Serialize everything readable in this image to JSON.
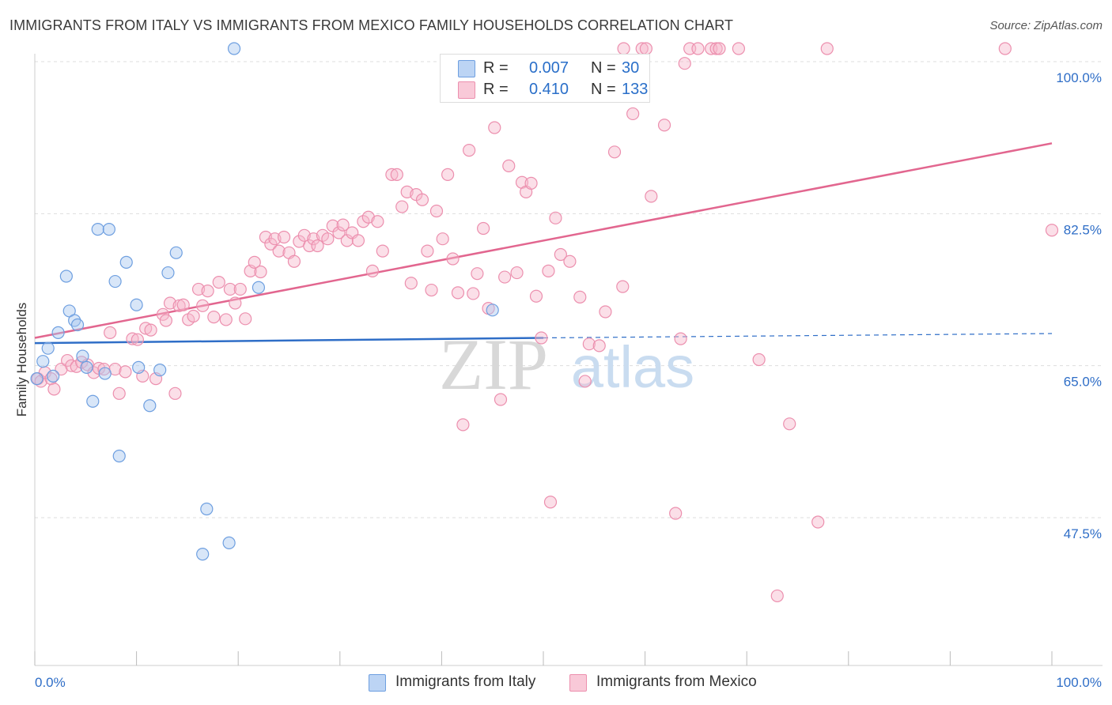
{
  "title": "IMMIGRANTS FROM ITALY VS IMMIGRANTS FROM MEXICO FAMILY HOUSEHOLDS CORRELATION CHART",
  "source": "Source: ZipAtlas.com",
  "watermark": {
    "zip": "ZIP",
    "atlas": "atlas"
  },
  "legend": {
    "italy": {
      "r_label": "R =",
      "r_value": "0.007",
      "n_label": "N =",
      "n_value": "30"
    },
    "mexico": {
      "r_label": "R =",
      "r_value": "0.410",
      "n_label": "N =",
      "n_value": "133"
    }
  },
  "colors": {
    "italy_fill": "#a9c8f0",
    "italy_stroke": "#6e9fe0",
    "italy_line": "#2f6ec7",
    "mexico_fill": "#f6b8cc",
    "mexico_stroke": "#ec8fae",
    "mexico_line": "#e2668f",
    "tick_label": "#2f6ec7",
    "grid": "#dddddd"
  },
  "chart_data": {
    "type": "scatter",
    "title": "IMMIGRANTS FROM ITALY VS IMMIGRANTS FROM MEXICO FAMILY HOUSEHOLDS CORRELATION CHART",
    "xlabel": "",
    "ylabel": "Family Households",
    "xlim": [
      0,
      100
    ],
    "ylim": [
      30,
      102
    ],
    "x_tick_labels": [
      "0.0%",
      "100.0%"
    ],
    "y_ticks": [
      47.5,
      65.0,
      82.5,
      100.0
    ],
    "y_tick_labels": [
      "47.5%",
      "65.0%",
      "82.5%",
      "100.0%"
    ],
    "legend_position": "top-center",
    "series": [
      {
        "name": "Immigrants from Italy",
        "R": 0.007,
        "N": 30,
        "trend": {
          "x": [
            0,
            50
          ],
          "y": [
            67.6,
            68.2
          ],
          "dashed_extension_to_x": 100,
          "dashed_end_y": 68.7
        },
        "points": [
          [
            0.2,
            63.5
          ],
          [
            0.8,
            65.5
          ],
          [
            1.3,
            67.0
          ],
          [
            1.8,
            63.8
          ],
          [
            2.3,
            68.8
          ],
          [
            3.1,
            75.3
          ],
          [
            3.4,
            71.3
          ],
          [
            3.9,
            70.2
          ],
          [
            4.2,
            69.7
          ],
          [
            4.7,
            66.1
          ],
          [
            5.1,
            64.8
          ],
          [
            5.7,
            60.9
          ],
          [
            6.2,
            80.7
          ],
          [
            7.3,
            80.7
          ],
          [
            6.9,
            64.1
          ],
          [
            7.9,
            74.7
          ],
          [
            8.3,
            54.6
          ],
          [
            9.0,
            76.9
          ],
          [
            10.0,
            72.0
          ],
          [
            10.2,
            64.8
          ],
          [
            11.3,
            60.4
          ],
          [
            12.3,
            64.5
          ],
          [
            13.1,
            75.7
          ],
          [
            13.9,
            78.0
          ],
          [
            16.5,
            43.3
          ],
          [
            16.9,
            48.5
          ],
          [
            19.1,
            44.6
          ],
          [
            19.6,
            101.5
          ],
          [
            22.0,
            74.0
          ],
          [
            45.0,
            71.4
          ]
        ]
      },
      {
        "name": "Immigrants from Mexico",
        "R": 0.41,
        "N": 133,
        "trend": {
          "x": [
            0,
            100
          ],
          "y": [
            68.2,
            90.6
          ]
        },
        "points": [
          [
            0.3,
            63.5
          ],
          [
            0.6,
            63.2
          ],
          [
            1.0,
            64.2
          ],
          [
            1.6,
            63.5
          ],
          [
            1.9,
            62.3
          ],
          [
            2.6,
            64.6
          ],
          [
            3.2,
            65.6
          ],
          [
            3.6,
            65.0
          ],
          [
            4.1,
            64.9
          ],
          [
            4.6,
            65.4
          ],
          [
            5.2,
            65.1
          ],
          [
            5.8,
            64.2
          ],
          [
            6.3,
            64.7
          ],
          [
            6.8,
            64.6
          ],
          [
            7.4,
            68.8
          ],
          [
            7.9,
            64.6
          ],
          [
            8.3,
            61.8
          ],
          [
            8.9,
            64.3
          ],
          [
            9.6,
            68.1
          ],
          [
            10.1,
            68.0
          ],
          [
            10.6,
            63.8
          ],
          [
            10.9,
            69.3
          ],
          [
            11.4,
            69.1
          ],
          [
            11.9,
            63.5
          ],
          [
            12.6,
            70.9
          ],
          [
            12.9,
            70.2
          ],
          [
            13.3,
            72.2
          ],
          [
            13.8,
            61.8
          ],
          [
            14.2,
            71.9
          ],
          [
            14.6,
            72.0
          ],
          [
            15.1,
            70.3
          ],
          [
            15.6,
            70.7
          ],
          [
            16.1,
            73.8
          ],
          [
            16.5,
            71.9
          ],
          [
            17.0,
            73.6
          ],
          [
            17.6,
            70.6
          ],
          [
            18.1,
            74.6
          ],
          [
            18.8,
            70.3
          ],
          [
            19.2,
            73.8
          ],
          [
            19.7,
            72.2
          ],
          [
            20.2,
            73.8
          ],
          [
            20.7,
            70.4
          ],
          [
            21.2,
            75.9
          ],
          [
            21.6,
            76.9
          ],
          [
            22.2,
            75.8
          ],
          [
            22.7,
            79.8
          ],
          [
            23.2,
            79.0
          ],
          [
            23.6,
            79.6
          ],
          [
            24.0,
            78.2
          ],
          [
            24.5,
            79.8
          ],
          [
            25.0,
            78.0
          ],
          [
            25.5,
            77.0
          ],
          [
            26.0,
            79.3
          ],
          [
            26.5,
            80.0
          ],
          [
            27.0,
            78.8
          ],
          [
            27.4,
            79.6
          ],
          [
            27.8,
            78.8
          ],
          [
            28.3,
            80.0
          ],
          [
            28.8,
            79.6
          ],
          [
            29.3,
            81.1
          ],
          [
            29.9,
            80.3
          ],
          [
            30.3,
            81.2
          ],
          [
            30.7,
            79.4
          ],
          [
            31.2,
            80.3
          ],
          [
            31.8,
            79.4
          ],
          [
            32.3,
            81.6
          ],
          [
            32.8,
            82.1
          ],
          [
            33.2,
            75.9
          ],
          [
            33.7,
            81.6
          ],
          [
            34.2,
            78.2
          ],
          [
            35.1,
            87.0
          ],
          [
            35.6,
            87.0
          ],
          [
            36.1,
            83.3
          ],
          [
            36.6,
            85.0
          ],
          [
            37.0,
            74.5
          ],
          [
            37.5,
            84.7
          ],
          [
            38.1,
            84.1
          ],
          [
            38.6,
            78.2
          ],
          [
            39.0,
            73.7
          ],
          [
            39.5,
            82.8
          ],
          [
            40.1,
            79.6
          ],
          [
            40.6,
            87.0
          ],
          [
            41.1,
            77.3
          ],
          [
            41.6,
            73.4
          ],
          [
            42.1,
            58.2
          ],
          [
            42.7,
            89.8
          ],
          [
            43.1,
            73.3
          ],
          [
            43.5,
            75.6
          ],
          [
            44.1,
            80.8
          ],
          [
            44.6,
            71.6
          ],
          [
            45.2,
            92.4
          ],
          [
            45.8,
            61.1
          ],
          [
            46.0,
            96.0
          ],
          [
            46.2,
            75.2
          ],
          [
            46.6,
            88.0
          ],
          [
            47.4,
            75.7
          ],
          [
            47.9,
            86.1
          ],
          [
            48.3,
            85.0
          ],
          [
            48.8,
            86.0
          ],
          [
            49.3,
            73.0
          ],
          [
            49.8,
            68.2
          ],
          [
            50.5,
            75.9
          ],
          [
            50.7,
            49.3
          ],
          [
            51.2,
            82.0
          ],
          [
            51.7,
            77.8
          ],
          [
            52.6,
            77.0
          ],
          [
            53.6,
            72.9
          ],
          [
            54.1,
            63.2
          ],
          [
            54.5,
            67.5
          ],
          [
            55.5,
            67.3
          ],
          [
            56.1,
            71.2
          ],
          [
            57.0,
            89.6
          ],
          [
            57.8,
            74.1
          ],
          [
            57.9,
            101.5
          ],
          [
            58.8,
            94.0
          ],
          [
            59.7,
            101.5
          ],
          [
            60.1,
            101.5
          ],
          [
            60.6,
            84.5
          ],
          [
            61.9,
            92.7
          ],
          [
            63.0,
            48.0
          ],
          [
            63.5,
            68.1
          ],
          [
            63.9,
            99.8
          ],
          [
            64.4,
            101.5
          ],
          [
            65.2,
            101.5
          ],
          [
            66.5,
            101.5
          ],
          [
            67.0,
            101.5
          ],
          [
            67.3,
            101.5
          ],
          [
            69.2,
            101.5
          ],
          [
            71.2,
            65.7
          ],
          [
            74.2,
            58.3
          ],
          [
            77.0,
            47.0
          ],
          [
            77.9,
            101.5
          ],
          [
            73.0,
            38.5
          ],
          [
            95.4,
            101.5
          ],
          [
            100.0,
            80.6
          ]
        ]
      }
    ]
  },
  "bottom_legend": {
    "italy_label": "Immigrants from Italy",
    "mexico_label": "Immigrants from Mexico"
  }
}
